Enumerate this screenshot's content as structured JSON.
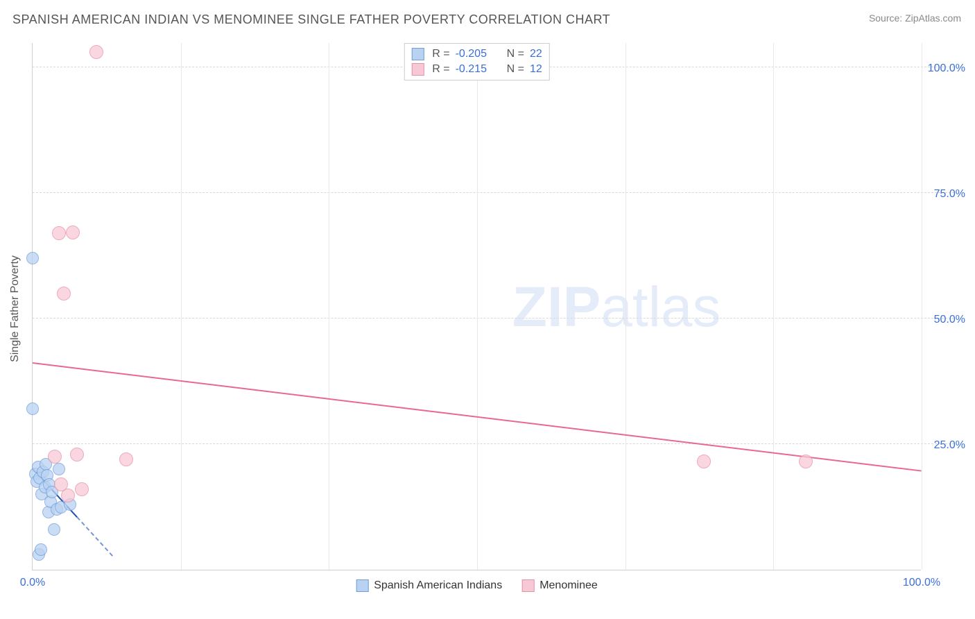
{
  "title": "SPANISH AMERICAN INDIAN VS MENOMINEE SINGLE FATHER POVERTY CORRELATION CHART",
  "source_label": "Source: ",
  "source_name": "ZipAtlas.com",
  "ylabel": "Single Father Poverty",
  "watermark_zip": "ZIP",
  "watermark_atlas": "atlas",
  "axis": {
    "xlim": [
      0,
      100
    ],
    "ylim": [
      0,
      105
    ],
    "xticks": [
      {
        "v": 0,
        "label": "0.0%"
      },
      {
        "v": 100,
        "label": "100.0%"
      }
    ],
    "xgrid": [
      16.67,
      33.33,
      50,
      66.67,
      83.33,
      100
    ],
    "yticks": [
      {
        "v": 25,
        "label": "25.0%"
      },
      {
        "v": 50,
        "label": "50.0%"
      },
      {
        "v": 75,
        "label": "75.0%"
      },
      {
        "v": 100,
        "label": "100.0%"
      }
    ],
    "tick_color": "#3a6fd8",
    "grid_color": "#d8d8d8"
  },
  "series": [
    {
      "name": "Spanish American Indians",
      "fill": "#b9d2f2",
      "stroke": "#6f9edb",
      "marker_radius": 9,
      "r_value": "-0.205",
      "n_value": "22",
      "points": [
        {
          "x": 0.0,
          "y": 32.0
        },
        {
          "x": 0.0,
          "y": 62.0
        },
        {
          "x": 0.3,
          "y": 19.0
        },
        {
          "x": 0.5,
          "y": 17.5
        },
        {
          "x": 0.6,
          "y": 20.5
        },
        {
          "x": 0.7,
          "y": 3.0
        },
        {
          "x": 0.8,
          "y": 18.2
        },
        {
          "x": 0.9,
          "y": 4.0
        },
        {
          "x": 1.0,
          "y": 15.0
        },
        {
          "x": 1.2,
          "y": 19.5
        },
        {
          "x": 1.4,
          "y": 16.5
        },
        {
          "x": 1.5,
          "y": 21.0
        },
        {
          "x": 1.6,
          "y": 18.8
        },
        {
          "x": 1.8,
          "y": 11.5
        },
        {
          "x": 1.9,
          "y": 17.0
        },
        {
          "x": 2.0,
          "y": 13.5
        },
        {
          "x": 2.2,
          "y": 15.5
        },
        {
          "x": 2.4,
          "y": 8.0
        },
        {
          "x": 2.7,
          "y": 12.0
        },
        {
          "x": 3.0,
          "y": 20.0
        },
        {
          "x": 3.2,
          "y": 12.5
        },
        {
          "x": 4.2,
          "y": 13.0
        }
      ],
      "trend": {
        "x1": 0.0,
        "y1": 20.0,
        "x2": 5.0,
        "y2": 10.3,
        "color": "#1f4fb0",
        "dash_extend_x": 9.0
      }
    },
    {
      "name": "Menominee",
      "fill": "#f7c9d6",
      "stroke": "#e88fa8",
      "marker_radius": 10,
      "r_value": "-0.215",
      "n_value": "12",
      "points": [
        {
          "x": 2.5,
          "y": 22.5
        },
        {
          "x": 3.0,
          "y": 67.0
        },
        {
          "x": 3.2,
          "y": 17.0
        },
        {
          "x": 3.5,
          "y": 55.0
        },
        {
          "x": 4.0,
          "y": 14.8
        },
        {
          "x": 4.5,
          "y": 67.2
        },
        {
          "x": 5.0,
          "y": 23.0
        },
        {
          "x": 5.5,
          "y": 16.0
        },
        {
          "x": 7.2,
          "y": 103.0
        },
        {
          "x": 10.5,
          "y": 22.0
        },
        {
          "x": 75.5,
          "y": 21.5
        },
        {
          "x": 87.0,
          "y": 21.5
        }
      ],
      "trend": {
        "x1": 0.0,
        "y1": 41.0,
        "x2": 100.0,
        "y2": 19.5,
        "color": "#e86890"
      }
    }
  ],
  "legend_top": {
    "r_label": "R =",
    "n_label": "N ="
  },
  "legend_bottom": [
    {
      "label": "Spanish American Indians",
      "series": 0
    },
    {
      "label": "Menominee",
      "series": 1
    }
  ]
}
